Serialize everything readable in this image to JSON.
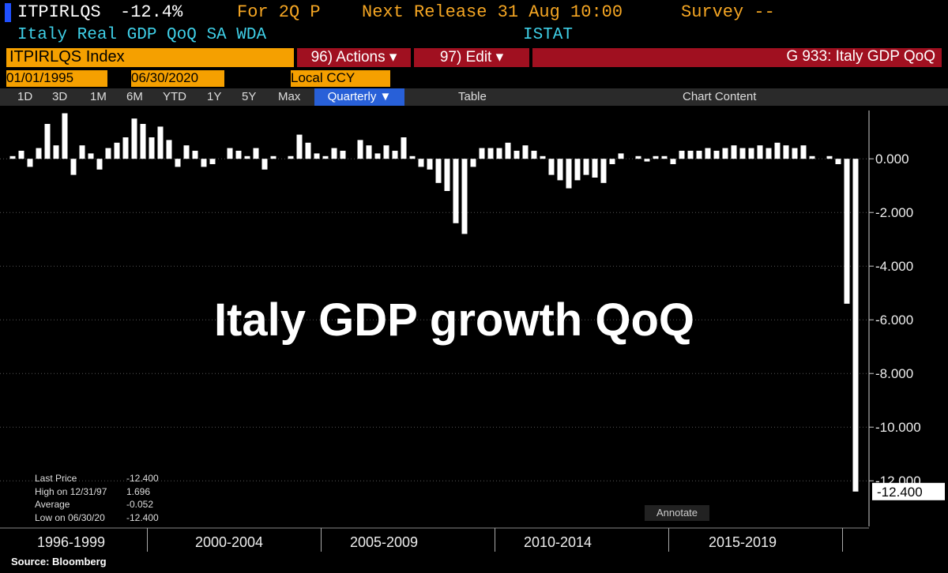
{
  "header": {
    "ticker": "ITPIRLQS",
    "last": "-12.4%",
    "period": "For 2Q P",
    "next_release": "Next Release 31 Aug 10:00",
    "survey": "Survey --",
    "description": "Italy Real GDP QoQ SA WDA",
    "source_agency": "ISTAT"
  },
  "toolbar": {
    "security": "ITPIRLQS Index",
    "actions": "96) Actions ▾",
    "edit": "97) Edit ▾",
    "function": "G 933: Italy GDP QoQ",
    "start_date": "01/01/1995",
    "end_date": "06/30/2020",
    "currency": "Local CCY",
    "ranges": [
      "1D",
      "3D",
      "1M",
      "6M",
      "YTD",
      "1Y",
      "5Y",
      "Max"
    ],
    "frequency": "Quarterly ▼",
    "table": "Table",
    "chart_content": "Chart Content"
  },
  "legend": [
    {
      "label": "Last Price",
      "value": "-12.400"
    },
    {
      "label": "High on 12/31/97",
      "value": "1.696"
    },
    {
      "label": "Average",
      "value": "-0.052"
    },
    {
      "label": "Low on 06/30/20",
      "value": "-12.400"
    }
  ],
  "annotate": "Annotate",
  "source": "Source: Bloomberg",
  "chart_data": {
    "type": "bar",
    "title": "Italy GDP growth QoQ",
    "color": "#ffffff",
    "categories": [
      null,
      null,
      null,
      null,
      null,
      null,
      null,
      null,
      null,
      null,
      null,
      null,
      null,
      null,
      null,
      null,
      null,
      null,
      null,
      null,
      null,
      null,
      null,
      null,
      null,
      null,
      null,
      null,
      null,
      null,
      null,
      null,
      null,
      null,
      null,
      null,
      null,
      null,
      null,
      null,
      null,
      null,
      null,
      null,
      null,
      null,
      null,
      null,
      null,
      null,
      null,
      null,
      null,
      null,
      null,
      null,
      null,
      null,
      null,
      null,
      null,
      null,
      null,
      null,
      null,
      null,
      null,
      null,
      null,
      null,
      null,
      null,
      null,
      null,
      null,
      null,
      null,
      null,
      null,
      null,
      null,
      null,
      null,
      null,
      null,
      null,
      null,
      null,
      null,
      null,
      null,
      null,
      null,
      null,
      null,
      null,
      null,
      null
    ],
    "values": [
      0.1,
      0.3,
      -0.3,
      0.4,
      1.3,
      0.5,
      1.696,
      -0.6,
      0.5,
      0.2,
      -0.4,
      0.4,
      0.6,
      0.8,
      1.5,
      1.3,
      0.8,
      1.2,
      0.7,
      -0.3,
      0.5,
      0.3,
      -0.3,
      -0.2,
      0.0,
      0.4,
      0.3,
      0.1,
      0.4,
      -0.4,
      0.1,
      0.0,
      0.1,
      0.9,
      0.6,
      0.2,
      0.1,
      0.4,
      0.3,
      0.0,
      0.7,
      0.5,
      0.2,
      0.5,
      0.3,
      0.8,
      0.1,
      -0.3,
      -0.4,
      -0.9,
      -1.2,
      -2.4,
      -2.8,
      -0.3,
      0.4,
      0.4,
      0.4,
      0.6,
      0.3,
      0.5,
      0.3,
      0.1,
      -0.6,
      -0.8,
      -1.1,
      -0.8,
      -0.6,
      -0.7,
      -0.9,
      -0.2,
      0.2,
      0.0,
      0.1,
      -0.1,
      0.1,
      0.1,
      -0.2,
      0.3,
      0.3,
      0.3,
      0.4,
      0.3,
      0.4,
      0.5,
      0.4,
      0.4,
      0.5,
      0.4,
      0.6,
      0.5,
      0.4,
      0.5,
      0.1,
      0.0,
      0.1,
      -0.2,
      -5.4,
      -12.4
    ],
    "last_value_label": "-12.400",
    "x_group_labels": [
      "1996-1999",
      "2000-2004",
      "2005-2009",
      "2010-2014",
      "2015-2019"
    ],
    "ylim": [
      -13.7,
      1.8
    ],
    "yticks": [
      {
        "value": 0,
        "label": "0.000"
      },
      {
        "value": -2,
        "label": "-2.000"
      },
      {
        "value": -4,
        "label": "-4.000"
      },
      {
        "value": -6,
        "label": "-6.000"
      },
      {
        "value": -8,
        "label": "-8.000"
      },
      {
        "value": -10,
        "label": "-10.000"
      },
      {
        "value": -12,
        "label": "-12.000"
      }
    ],
    "grid": true
  }
}
